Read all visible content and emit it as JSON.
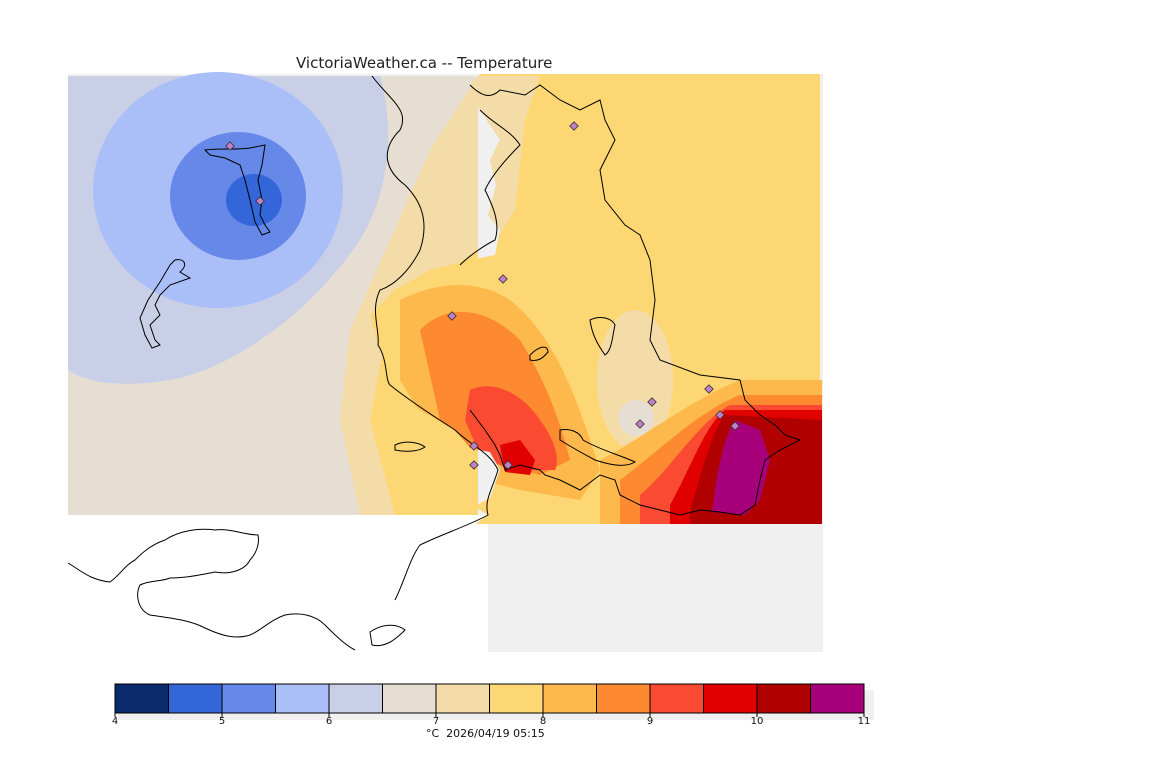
{
  "title": "VictoriaWeather.ca -- Temperature",
  "caption": "°C  2026/04/19 05:15",
  "colors": {
    "land_background": "#f0f0f0",
    "no_data_water": "#ffffff",
    "coastline": "#000000",
    "station_marker_fill": "#c080c8"
  },
  "legend": {
    "unit": "°C",
    "min": 4,
    "max": 11,
    "step": 0.5,
    "tick_labels": [
      "4",
      "5",
      "6",
      "7",
      "8",
      "9",
      "10",
      "11"
    ],
    "bins": [
      {
        "from": 4.0,
        "to": 4.5,
        "color": "#0b2a6b"
      },
      {
        "from": 4.5,
        "to": 5.0,
        "color": "#3366d9"
      },
      {
        "from": 5.0,
        "to": 5.5,
        "color": "#6688e8"
      },
      {
        "from": 5.5,
        "to": 6.0,
        "color": "#aabef8"
      },
      {
        "from": 6.0,
        "to": 6.5,
        "color": "#c9cfe6"
      },
      {
        "from": 6.5,
        "to": 7.0,
        "color": "#e6ded3"
      },
      {
        "from": 7.0,
        "to": 7.5,
        "color": "#f3dca8"
      },
      {
        "from": 7.5,
        "to": 8.0,
        "color": "#fdd773"
      },
      {
        "from": 8.0,
        "to": 8.5,
        "color": "#fdb94c"
      },
      {
        "from": 8.5,
        "to": 9.0,
        "color": "#fd8a30"
      },
      {
        "from": 9.0,
        "to": 9.5,
        "color": "#fa4a32"
      },
      {
        "from": 9.5,
        "to": 10.0,
        "color": "#e00000"
      },
      {
        "from": 10.0,
        "to": 10.5,
        "color": "#b00000"
      },
      {
        "from": 10.5,
        "to": 11.0,
        "color": "#a8007a"
      }
    ]
  },
  "stations_count": 13
}
